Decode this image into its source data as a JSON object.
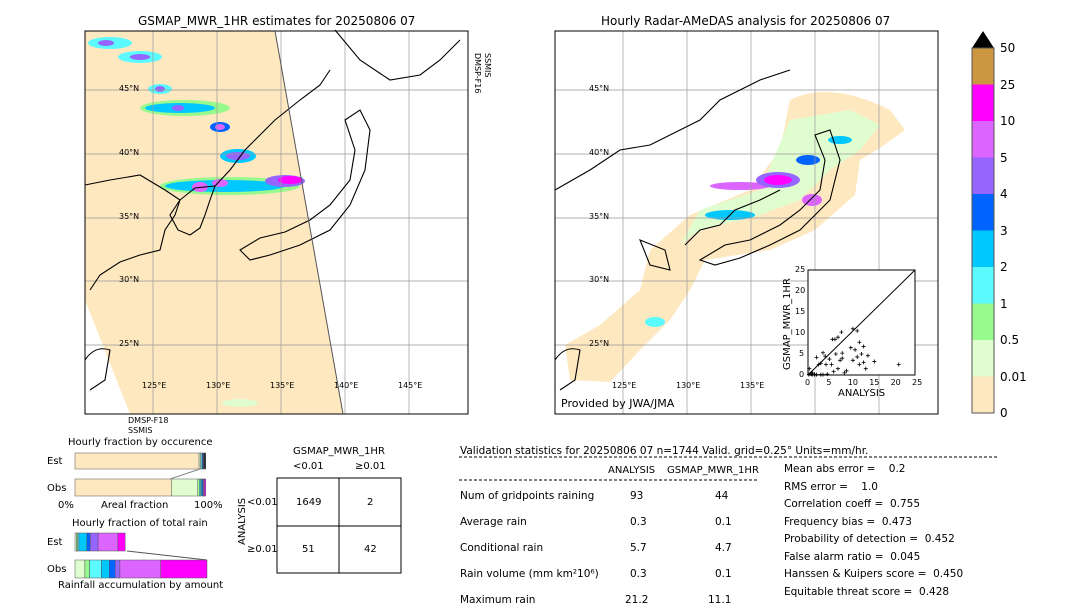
{
  "left_map": {
    "title": "GSMAP_MWR_1HR estimates for 20250806 07",
    "sat_top": [
      "DMSP-F16",
      "SSMIS"
    ],
    "sat_bottom": [
      "DMSP-F18",
      "SSMIS"
    ]
  },
  "right_map": {
    "title": "Hourly Radar-AMeDAS analysis for 20250806 07",
    "credit": "Provided by JWA/JMA"
  },
  "lat_labels": [
    "45°N",
    "40°N",
    "35°N",
    "30°N",
    "25°N"
  ],
  "lon_labels_left": [
    "125°E",
    "130°E",
    "135°E",
    "140°E",
    "145°E"
  ],
  "lon_labels_right": [
    "125°E",
    "130°E",
    "135°E"
  ],
  "colorbar": {
    "labels": [
      "0",
      "0.01",
      "0.5",
      "1",
      "2",
      "3",
      "4",
      "5",
      "10",
      "25",
      "50"
    ],
    "colors": [
      "#fde8c0",
      "#e0fdd0",
      "#98fa8c",
      "#5afaff",
      "#00c8ff",
      "#0064ff",
      "#9664ff",
      "#dc64ff",
      "#ff00ff",
      "#cd9640"
    ],
    "extend": "max"
  },
  "chart_data": [
    {
      "type": "scatter",
      "xlabel": "ANALYSIS",
      "ylabel": "GSMAP_MWR_1HR",
      "xlim": [
        0,
        25
      ],
      "ylim": [
        0,
        25
      ],
      "ticks": [
        "0",
        "5",
        "10",
        "15",
        "20",
        "25"
      ],
      "points": [
        [
          0.2,
          0.1
        ],
        [
          0.5,
          0.3
        ],
        [
          0.8,
          0.2
        ],
        [
          1,
          0.5
        ],
        [
          0.3,
          1.5
        ],
        [
          1.5,
          0.2
        ],
        [
          2,
          4.2
        ],
        [
          2.5,
          2.5
        ],
        [
          3,
          2.8
        ],
        [
          3.5,
          5.3
        ],
        [
          4,
          4.5
        ],
        [
          4.2,
          2.5
        ],
        [
          4.5,
          0.2
        ],
        [
          5,
          3.8
        ],
        [
          5.5,
          2.5
        ],
        [
          5.7,
          8.5
        ],
        [
          6,
          0.8
        ],
        [
          6.3,
          8.5
        ],
        [
          6.5,
          5
        ],
        [
          7,
          9
        ],
        [
          7,
          1.5
        ],
        [
          7.5,
          3.5
        ],
        [
          7.8,
          10.2
        ],
        [
          8,
          5.2
        ],
        [
          8,
          4
        ],
        [
          8.5,
          0.5
        ],
        [
          9,
          1
        ],
        [
          10,
          6.5
        ],
        [
          10.5,
          11
        ],
        [
          10.5,
          3.5
        ],
        [
          11,
          6
        ],
        [
          11.5,
          10.5
        ],
        [
          11.5,
          4.3
        ],
        [
          12,
          7.8
        ],
        [
          12,
          2.5
        ],
        [
          12.5,
          5
        ],
        [
          13,
          3
        ],
        [
          13,
          6.8
        ],
        [
          13.5,
          1.5
        ],
        [
          14,
          4.6
        ],
        [
          15.5,
          3.2
        ],
        [
          21.2,
          2.5
        ],
        [
          1,
          0.1
        ],
        [
          1.5,
          0.1
        ],
        [
          2,
          0.1
        ],
        [
          3,
          0.1
        ],
        [
          3.5,
          0.1
        ]
      ]
    },
    {
      "type": "bar",
      "title": "Hourly fraction by occurence",
      "xlabel": "Areal fraction",
      "tick_labels": [
        "0%",
        "100%"
      ],
      "rows": [
        {
          "label": "Est",
          "segments": [
            0.94,
            0.012,
            0.01,
            0.008,
            0.008,
            0.012
          ]
        },
        {
          "label": "Obs",
          "segments": [
            0.73,
            0.2,
            0.012,
            0.01,
            0.008,
            0.008,
            0.006,
            0.006,
            0.01
          ]
        }
      ]
    },
    {
      "type": "bar",
      "title": "Hourly fraction of total rain",
      "xlabel": "Rainfall accumulation by amount",
      "rows": [
        {
          "label": "Est",
          "segments": [
            0.01,
            0.01,
            0.01,
            0.06,
            0.025,
            0.06,
            0.15,
            0.055
          ]
        },
        {
          "label": "Obs",
          "segments": [
            0.075,
            0.035,
            0.09,
            0.06,
            0.045,
            0.035,
            0.31,
            0.35
          ]
        }
      ]
    }
  ],
  "contingency": {
    "title": "GSMAP_MWR_1HR",
    "col_labels": [
      "<0.01",
      "≥0.01"
    ],
    "row_axis": "ANALYSIS",
    "row_labels": [
      "<0.01",
      "≥0.01"
    ],
    "cells": [
      [
        "1649",
        "2"
      ],
      [
        "51",
        "42"
      ]
    ]
  },
  "stats": {
    "header": "Validation statistics for 20250806 07  n=1744 Valid. grid=0.25° Units=mm/hr.",
    "columns": [
      "ANALYSIS",
      "GSMAP_MWR_1HR"
    ],
    "rows": [
      {
        "label": "Num of gridpoints raining",
        "a": "93",
        "g": "44"
      },
      {
        "label": "Average rain",
        "a": "0.3",
        "g": "0.1"
      },
      {
        "label": "Conditional rain",
        "a": "5.7",
        "g": "4.7"
      },
      {
        "label": "Rain volume (mm km²10⁶)",
        "a": "0.3",
        "g": "0.1"
      },
      {
        "label": "Maximum rain",
        "a": "21.2",
        "g": "11.1"
      }
    ],
    "scores": [
      "Mean abs error =    0.2",
      "RMS error =    1.0",
      "Correlation coeff =  0.755",
      "Frequency bias =  0.473",
      "Probability of detection =  0.452",
      "False alarm ratio =  0.045",
      "Hanssen & Kuipers score =  0.450",
      "Equitable threat score =  0.428"
    ]
  }
}
